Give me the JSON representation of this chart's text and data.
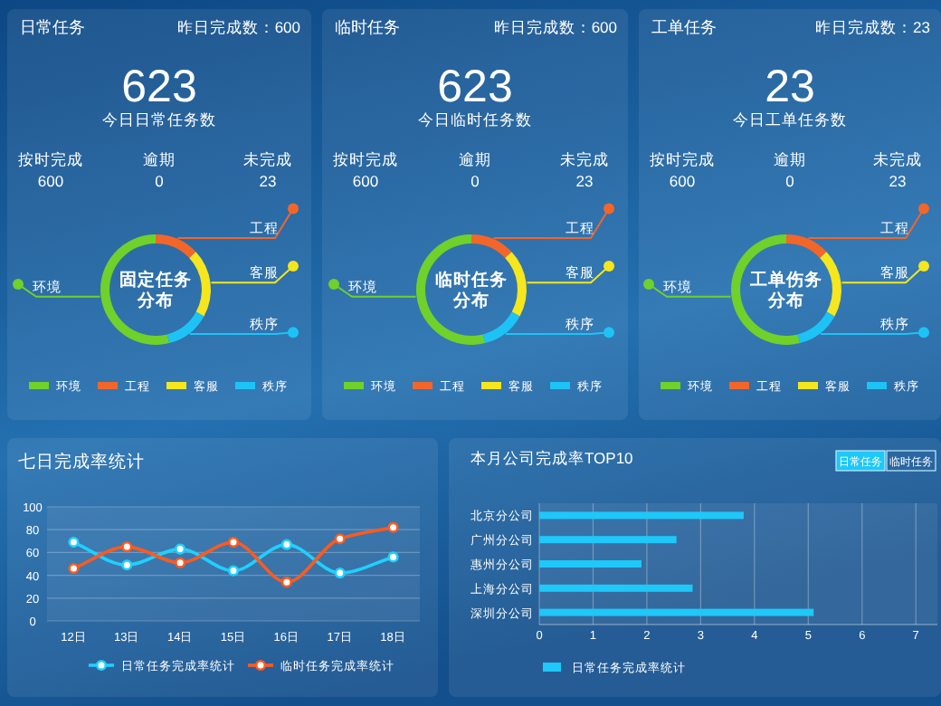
{
  "chart_data": [
    {
      "type": "other",
      "title": "日常任务",
      "annotations": [
        "昨日完成数：600",
        "623",
        "今日日常任务数",
        "按时完成",
        "600",
        "逾期",
        "0",
        "未完成",
        "23"
      ]
    },
    {
      "type": "donut",
      "categories": [
        "环境",
        "工程",
        "客服",
        "秩序"
      ],
      "values": [
        54,
        13,
        20,
        13
      ],
      "colors": [
        "#6fd12a",
        "#f2662a",
        "#f5e61e",
        "#1ec3f5"
      ],
      "annotations": [
        "固定任务",
        "分布"
      ],
      "legend": "bottom"
    },
    {
      "type": "other",
      "title": "临时任务",
      "annotations": [
        "昨日完成数：600",
        "623",
        "今日临时任务数",
        "按时完成",
        "600",
        "逾期",
        "0",
        "未完成",
        "23"
      ]
    },
    {
      "type": "donut",
      "categories": [
        "环境",
        "工程",
        "客服",
        "秩序"
      ],
      "values": [
        54,
        13,
        20,
        13
      ],
      "colors": [
        "#6fd12a",
        "#f2662a",
        "#f5e61e",
        "#1ec3f5"
      ],
      "annotations": [
        "临时任务",
        "分布"
      ],
      "legend": "bottom"
    },
    {
      "type": "other",
      "title": "工单任务",
      "annotations": [
        "昨日完成数：23",
        "23",
        "今日工单任务数",
        "按时完成",
        "600",
        "逾期",
        "0",
        "未完成",
        "23"
      ]
    },
    {
      "type": "donut",
      "categories": [
        "环境",
        "工程",
        "客服",
        "秩序"
      ],
      "values": [
        54,
        13,
        20,
        13
      ],
      "colors": [
        "#6fd12a",
        "#f2662a",
        "#f5e61e",
        "#1ec3f5"
      ],
      "annotations": [
        "工单伤务",
        "分布"
      ],
      "legend": "bottom"
    },
    {
      "type": "line",
      "title": "七日完成率统计",
      "categories": [
        "12日",
        "13日",
        "14日",
        "15日",
        "16日",
        "17日",
        "18日"
      ],
      "ylim": [
        0,
        100
      ],
      "yticks": [
        0,
        20,
        40,
        60,
        80,
        100
      ],
      "grid": "y",
      "marker": "circle",
      "legend": "bottom",
      "series": [
        {
          "name": "日常任务完成率统计",
          "color": "#1fd0ff",
          "values": [
            69,
            49,
            63,
            44,
            67,
            42,
            56
          ]
        },
        {
          "name": "临时任务完成率统计",
          "color": "#ff5a1f",
          "values": [
            46,
            65,
            51,
            69,
            34,
            72,
            82
          ]
        }
      ]
    },
    {
      "type": "bar",
      "orientation": "horizontal",
      "title": "本月公司完成率TOP10",
      "annotations": [
        "日常任务",
        "临时任务"
      ],
      "categories": [
        "北京分公司",
        "广州分公司",
        "惠州分公司",
        "上海分公司",
        "深圳分公司"
      ],
      "xlim": [
        0,
        7.4
      ],
      "xticks": [
        0,
        1,
        2,
        3,
        4,
        5,
        6,
        7
      ],
      "grid": "x",
      "legend": "bottom",
      "series": [
        {
          "name": "日常任务完成率统计",
          "color": "#1ec8f8",
          "values": [
            3.8,
            2.55,
            1.9,
            2.85,
            5.1
          ]
        }
      ]
    }
  ]
}
